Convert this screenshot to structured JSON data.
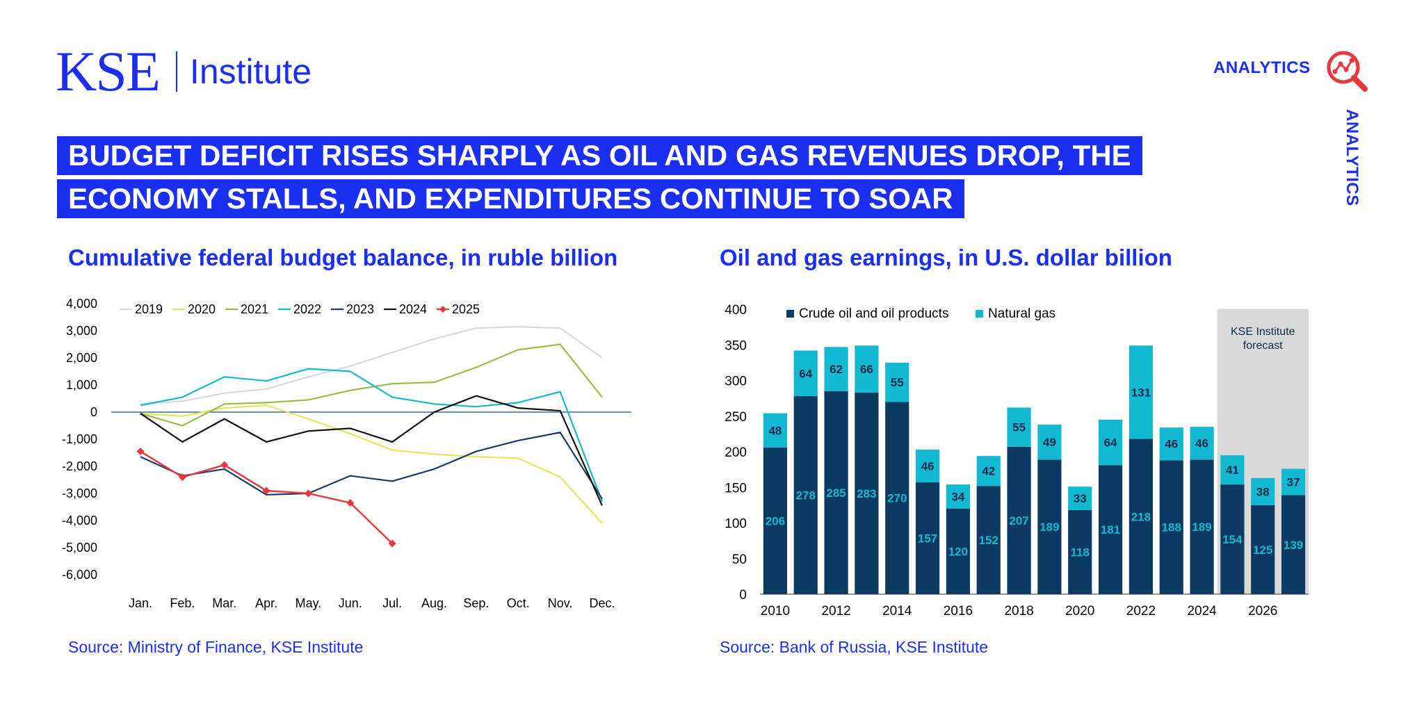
{
  "brand": {
    "logo_main": "KSE",
    "logo_sub": "Institute",
    "analytics_label": "ANALYTICS",
    "analytics_side_label": "ANALYTICS",
    "analytics_icon": "analytics-magnifier-icon"
  },
  "headline": {
    "line1": "BUDGET DEFICIT RISES SHARPLY AS OIL AND GAS REVENUES DROP, THE",
    "line2": "ECONOMY STALLS, AND EXPENDITURES CONTINUE TO SOAR"
  },
  "colors": {
    "brand_blue": "#1a2ff0",
    "accent_red": "#e8383d"
  },
  "left_chart": {
    "title": "Cumulative federal budget balance, in ruble billion",
    "source": "Source: Ministry of Finance, KSE Institute"
  },
  "right_chart": {
    "title": "Oil and gas earnings, in U.S. dollar billion",
    "source": "Source: Bank of Russia, KSE Institute"
  },
  "chart_data": [
    {
      "type": "line",
      "title": "Cumulative federal budget balance, in ruble billion",
      "x": [
        "Jan.",
        "Feb.",
        "Mar.",
        "Apr.",
        "May.",
        "Jun.",
        "Jul.",
        "Aug.",
        "Sep.",
        "Oct.",
        "Nov.",
        "Dec."
      ],
      "ylim": [
        -6000,
        4000
      ],
      "yticks": [
        4000,
        3000,
        2000,
        1000,
        0,
        -1000,
        -2000,
        -3000,
        -4000,
        -5000,
        -6000
      ],
      "ytick_labels": [
        "4,000",
        "3,000",
        "2,000",
        "1,000",
        "0",
        "-1,000",
        "-2,000",
        "-3,000",
        "-4,000",
        "-5,000",
        "-6,000"
      ],
      "legend_position": "top",
      "series": [
        {
          "name": "2019",
          "color": "#d9d9d9",
          "values": [
            300,
            400,
            700,
            850,
            1300,
            1700,
            2200,
            2700,
            3100,
            3150,
            3100,
            2000
          ]
        },
        {
          "name": "2020",
          "color": "#e3e85a",
          "values": [
            -50,
            -150,
            150,
            250,
            -250,
            -800,
            -1400,
            -1550,
            -1650,
            -1700,
            -2400,
            -4100
          ]
        },
        {
          "name": "2021",
          "color": "#9bbb45",
          "values": [
            -50,
            -500,
            300,
            350,
            450,
            800,
            1050,
            1100,
            1650,
            2300,
            2500,
            550
          ]
        },
        {
          "name": "2022",
          "color": "#17b8cf",
          "values": [
            250,
            550,
            1300,
            1150,
            1600,
            1500,
            550,
            300,
            200,
            350,
            750,
            -3300
          ]
        },
        {
          "name": "2023",
          "color": "#1b3a6b",
          "values": [
            -1650,
            -2350,
            -2100,
            -3050,
            -3000,
            -2350,
            -2550,
            -2100,
            -1450,
            -1050,
            -750,
            -3200
          ]
        },
        {
          "name": "2024",
          "color": "#111111",
          "values": [
            -50,
            -1100,
            -250,
            -1100,
            -700,
            -600,
            -1100,
            0,
            600,
            150,
            50,
            -3450
          ]
        },
        {
          "name": "2025",
          "color": "#e8383d",
          "marker": "diamond",
          "values": [
            -1450,
            -2400,
            -1950,
            -2900,
            -3000,
            -3350,
            -4850,
            null,
            null,
            null,
            null,
            null
          ]
        }
      ]
    },
    {
      "type": "bar",
      "stacked": true,
      "title": "Oil and gas earnings, in U.S. dollar billion",
      "categories": [
        "2010",
        "2011",
        "2012",
        "2013",
        "2014",
        "2015",
        "2016",
        "2017",
        "2018",
        "2019",
        "2020",
        "2021",
        "2022",
        "2023",
        "2024",
        "2025",
        "2026",
        "2027"
      ],
      "xtick_labels": [
        "2010",
        "2012",
        "2014",
        "2016",
        "2018",
        "2020",
        "2022",
        "2024",
        "2026"
      ],
      "ylim": [
        0,
        400
      ],
      "yticks": [
        0,
        50,
        100,
        150,
        200,
        250,
        300,
        350,
        400
      ],
      "legend_position": "top-left",
      "series": [
        {
          "name": "Crude oil and oil products",
          "color": "#0d3a63",
          "label_color": "#17b8cf",
          "values": [
            206,
            278,
            285,
            283,
            270,
            157,
            120,
            152,
            207,
            189,
            118,
            181,
            218,
            188,
            189,
            154,
            125,
            139
          ]
        },
        {
          "name": "Natural gas",
          "color": "#12b9d3",
          "label_color": "#0d2a4a",
          "values": [
            48,
            64,
            62,
            66,
            55,
            46,
            34,
            42,
            55,
            49,
            33,
            64,
            131,
            46,
            46,
            41,
            38,
            37
          ]
        }
      ],
      "annotation": {
        "text_line1": "KSE Institute",
        "text_line2": "forecast",
        "from_category": "2025",
        "to_category": "2027",
        "shade_color": "#d9d9d9"
      }
    }
  ]
}
